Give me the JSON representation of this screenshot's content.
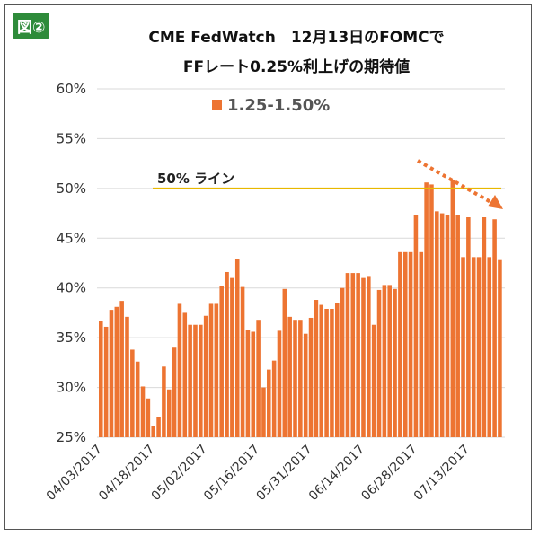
{
  "badge": "図②",
  "chart_data": {
    "type": "bar",
    "title": [
      "CME FedWatch　12月13日のFOMCで",
      "FFレート0.25%利上げの期待値"
    ],
    "legend": "1.25-1.50%",
    "legend_position": "top-left",
    "series_color": "#ed7432",
    "ylim": [
      25,
      60
    ],
    "yticks": [
      25,
      30,
      35,
      40,
      45,
      50,
      55,
      60
    ],
    "ytick_labels": [
      "25%",
      "30%",
      "35%",
      "40%",
      "45%",
      "50%",
      "55%",
      "60%"
    ],
    "xtick_labels": [
      "04/03/2017",
      "04/18/2017",
      "05/02/2017",
      "05/16/2017",
      "05/31/2017",
      "06/14/2017",
      "06/28/2017",
      "07/13/2017"
    ],
    "xtick_every": 10,
    "grid": true,
    "reference_line": {
      "value": 50,
      "label": "50% ライン",
      "color": "#e8b800"
    },
    "annotation": "downward dotted arrow",
    "values": [
      36.7,
      36.1,
      37.8,
      38.1,
      38.7,
      37.1,
      33.8,
      32.6,
      30.1,
      28.9,
      26.1,
      27.0,
      32.1,
      29.8,
      34.0,
      38.4,
      37.5,
      36.3,
      36.3,
      36.3,
      37.2,
      38.4,
      38.4,
      40.2,
      41.6,
      41.0,
      42.9,
      40.1,
      35.8,
      35.6,
      36.8,
      30.0,
      31.8,
      32.7,
      35.7,
      39.9,
      37.1,
      36.8,
      36.8,
      35.4,
      37.0,
      38.8,
      38.3,
      37.9,
      37.9,
      38.5,
      40.0,
      41.5,
      41.5,
      41.5,
      41.0,
      41.2,
      36.3,
      39.8,
      40.3,
      40.3,
      39.9,
      43.6,
      43.6,
      43.6,
      47.3,
      43.6,
      50.6,
      50.4,
      47.7,
      47.5,
      47.3,
      50.8,
      47.3,
      43.1,
      47.1,
      43.1,
      43.1,
      47.1,
      43.1,
      46.9,
      42.8
    ]
  }
}
